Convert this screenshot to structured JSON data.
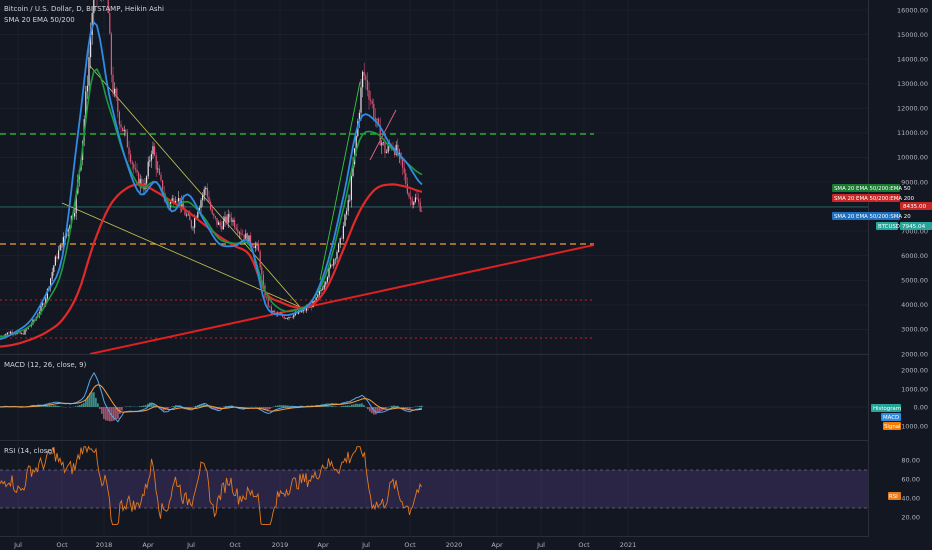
{
  "header": {
    "title": "Bitcoin / U.S. Dollar, D, BITSTAMP, Heikin Ashi",
    "indicator": "SMA 20 EMA 50/200"
  },
  "price_axis": [
    "16000.00",
    "15000.00",
    "14000.00",
    "13000.00",
    "12000.00",
    "11000.00",
    "10000.00",
    "9000.00",
    "8000.00",
    "7000.00",
    "6000.00",
    "5000.00",
    "4000.00",
    "3000.00",
    "2000.00"
  ],
  "macd_axis": [
    "2000.00",
    "1000.00",
    "0.00",
    "-1000.00"
  ],
  "rsi_axis": [
    "80.00",
    "60.00",
    "40.00",
    "20.00"
  ],
  "time_axis": [
    "Jul",
    "Oct",
    "2018",
    "Apr",
    "Jul",
    "Oct",
    "2019",
    "Apr",
    "Jul",
    "Oct",
    "2020",
    "Apr",
    "Jul",
    "Oct",
    "2021"
  ],
  "price_tags": {
    "ema50": "SMA 20 EMA 50/200:EMA 50",
    "ema200": "SMA 20 EMA 50/200:EMA 200",
    "ema200_value": "8435.00",
    "sma20": "SMA 20 EMA 50/200:SMA 20",
    "btc": "BTCUSD",
    "btc_value": "7945.04"
  },
  "macd": {
    "title": "MACD (12, 26, close, 9)",
    "tags": [
      "Histogram",
      "MACD",
      "Signal"
    ]
  },
  "rsi": {
    "title": "RSI (14, close)",
    "tag": "RSI"
  },
  "colors": {
    "background": "#131722",
    "ema50": "#1b9c3d",
    "ema200": "#e02a2a",
    "sma20": "#2e8be6",
    "btc": "#26a69a",
    "signal": "#f57c00",
    "rsi": "#e57a1f"
  },
  "chart_data": {
    "type": "line",
    "series": [
      {
        "name": "SMA 20",
        "values": [
          2600,
          2900,
          3400,
          4500,
          6000,
          11000,
          15500,
          12500,
          10000,
          8500,
          9000,
          7800,
          8500,
          7500,
          6500,
          6400,
          6500,
          4000,
          3600,
          3700,
          4200,
          5800,
          8500,
          11500,
          11500,
          10500,
          9800,
          8900
        ]
      },
      {
        "name": "EMA 50",
        "values": [
          2700,
          2850,
          3200,
          4100,
          5500,
          9000,
          13500,
          12000,
          10000,
          8800,
          9000,
          8000,
          8200,
          7600,
          6700,
          6500,
          6400,
          4500,
          3800,
          3800,
          4200,
          5500,
          8000,
          10700,
          11000,
          10400,
          9800,
          9300
        ]
      },
      {
        "name": "EMA 200",
        "values": [
          2300,
          2400,
          2600,
          2900,
          3400,
          4500,
          6500,
          8000,
          8700,
          8900,
          8600,
          8200,
          7800,
          7300,
          6800,
          6400,
          6000,
          4500,
          4100,
          3900,
          4000,
          4800,
          6300,
          7800,
          8700,
          8900,
          8800,
          8600
        ]
      }
    ]
  }
}
